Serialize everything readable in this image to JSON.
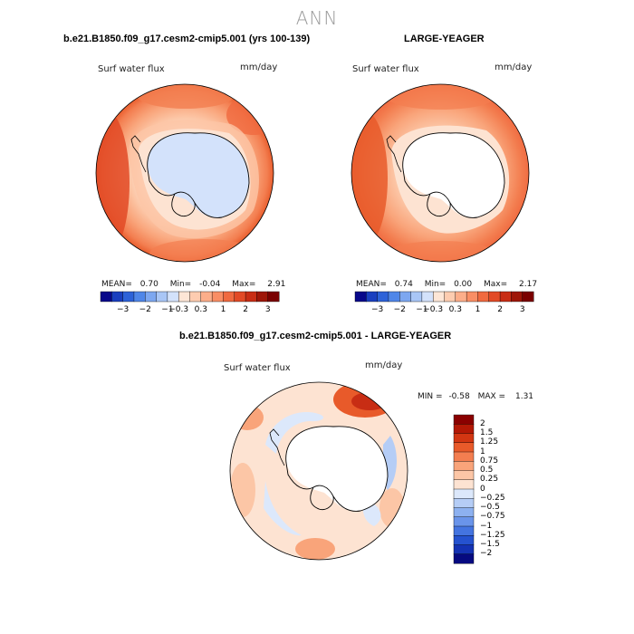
{
  "season": "ANN",
  "panels": [
    {
      "title": "b.e21.B1850.f09_g17.cesm2-cmip5.001 (yrs 100-139)",
      "variable": "Surf water flux",
      "units": "mm/day",
      "stats": {
        "mean_label": "MEAN=",
        "mean": "0.70",
        "min_label": "Min=",
        "min": "-0.04",
        "max_label": "Max=",
        "max": "2.91"
      }
    },
    {
      "title": "LARGE-YEAGER",
      "variable": "Surf water flux",
      "units": "mm/day",
      "stats": {
        "mean_label": "MEAN=",
        "mean": "0.74",
        "min_label": "Min=",
        "min": "0.00",
        "max_label": "Max=",
        "max": "2.17"
      }
    },
    {
      "title": "b.e21.B1850.f09_g17.cesm2-cmip5.001 - LARGE-YEAGER",
      "variable": "Surf water flux",
      "units": "mm/day",
      "stats": {
        "min_label": "MIN =",
        "min": "-0.58",
        "max_label": "MAX =",
        "max": "1.31"
      }
    }
  ],
  "colorbar_top": {
    "labels": [
      "-3",
      "-2",
      "-1",
      "-0.3",
      "0.3",
      "1",
      "2",
      "3"
    ],
    "colors": [
      "#08088a",
      "#1a3fbf",
      "#2d62d8",
      "#4f86e8",
      "#7da7f0",
      "#a9c6f6",
      "#d3e2fb",
      "#fde6d6",
      "#fdccb0",
      "#fcae8a",
      "#f98e65",
      "#f06a40",
      "#e24a26",
      "#c82d14",
      "#9e1608",
      "#7a0000"
    ]
  },
  "colorbar_diff": {
    "labels": [
      "2",
      "1.5",
      "1.25",
      "1",
      "0.75",
      "0.5",
      "0.25",
      "0",
      "-0.25",
      "-0.5",
      "-0.75",
      "-1",
      "-1.25",
      "-1.5",
      "-2"
    ],
    "colors": [
      "#8a0000",
      "#b31805",
      "#d23612",
      "#e85a2a",
      "#f37e50",
      "#f9a47a",
      "#fcc6a6",
      "#fde3d2",
      "#dce8fb",
      "#b5cdf6",
      "#8db1f0",
      "#6a94ea",
      "#4474e0",
      "#2552cf",
      "#1432b3",
      "#060a80"
    ]
  }
}
